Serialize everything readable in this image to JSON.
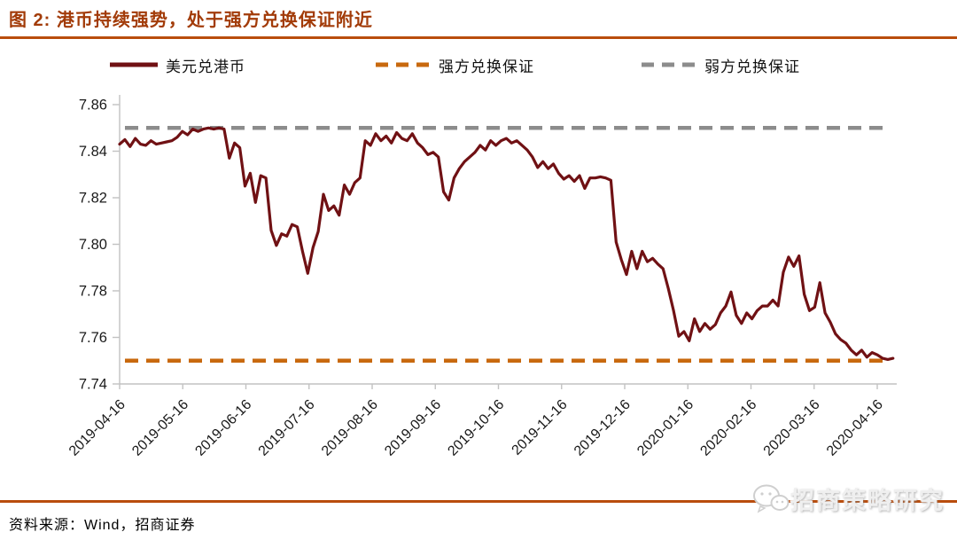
{
  "figure": {
    "title": "图 2: 港币持续强势，处于强方兑换保证附近",
    "source": "资料来源：Wind，招商证券",
    "watermark": "招商策略研究"
  },
  "colors": {
    "title": "#A23B08",
    "rule": "#B94D0D",
    "series_line": "#701114",
    "strong_side": "#C8690E",
    "weak_side": "#8C8C8C",
    "axis": "#C2C2C2",
    "tick_label": "#1A1A1A"
  },
  "chart_data": {
    "type": "line",
    "title": "港币持续强势，处于强方兑换保证附近",
    "xlabel": "",
    "ylabel": "",
    "ylim": [
      7.74,
      7.86
    ],
    "y_ticks": [
      7.86,
      7.84,
      7.82,
      7.8,
      7.78,
      7.76,
      7.74
    ],
    "x_tick_labels": [
      "2019-04-16",
      "2019-05-16",
      "2019-06-16",
      "2019-07-16",
      "2019-08-16",
      "2019-09-16",
      "2019-10-16",
      "2019-11-16",
      "2019-12-16",
      "2020-01-16",
      "2020-02-16",
      "2020-03-16",
      "2020-04-16"
    ],
    "x_span_months": 12.25,
    "grid": false,
    "legend_position": "top",
    "series": [
      {
        "name": "美元兑港币",
        "style": "solid",
        "color": "#701114",
        "values": [
          7.843,
          7.845,
          7.842,
          7.8455,
          7.843,
          7.8425,
          7.8445,
          7.843,
          7.8435,
          7.844,
          7.8445,
          7.846,
          7.8485,
          7.847,
          7.8495,
          7.8485,
          7.8495,
          7.85,
          7.8495,
          7.85,
          7.8495,
          7.837,
          7.8435,
          7.8415,
          7.825,
          7.8305,
          7.818,
          7.8295,
          7.8285,
          7.806,
          7.7995,
          7.8045,
          7.8035,
          7.8085,
          7.8075,
          7.797,
          7.7875,
          7.7985,
          7.8055,
          7.8215,
          7.8145,
          7.8165,
          7.8125,
          7.8255,
          7.8215,
          7.8265,
          7.8285,
          7.8445,
          7.8425,
          7.8475,
          7.8445,
          7.8465,
          7.8435,
          7.848,
          7.8455,
          7.8445,
          7.8475,
          7.8435,
          7.8415,
          7.8385,
          7.8395,
          7.8375,
          7.8225,
          7.819,
          7.8285,
          7.8325,
          7.8355,
          7.8375,
          7.8395,
          7.8425,
          7.8405,
          7.8445,
          7.8425,
          7.8445,
          7.8455,
          7.8435,
          7.8445,
          7.8425,
          7.8405,
          7.8375,
          7.833,
          7.8355,
          7.8325,
          7.8345,
          7.8305,
          7.828,
          7.8295,
          7.827,
          7.8295,
          7.824,
          7.8285,
          7.8285,
          7.829,
          7.8285,
          7.8275,
          7.801,
          7.7935,
          7.787,
          7.797,
          7.7895,
          7.797,
          7.7925,
          7.794,
          7.7915,
          7.7895,
          7.781,
          7.7715,
          7.7605,
          7.7625,
          7.7585,
          7.768,
          7.7625,
          7.766,
          7.7635,
          7.7655,
          7.7705,
          7.7735,
          7.7795,
          7.7695,
          7.766,
          7.7705,
          7.768,
          7.7715,
          7.7735,
          7.7735,
          7.776,
          7.7735,
          7.788,
          7.7945,
          7.7905,
          7.795,
          7.7785,
          7.7715,
          7.773,
          7.7835,
          7.7705,
          7.7665,
          7.7615,
          7.759,
          7.7575,
          7.7545,
          7.7525,
          7.7545,
          7.7515,
          7.7535,
          7.7525,
          7.751,
          7.7505,
          7.751
        ]
      },
      {
        "name": "强方兑换保证",
        "style": "dashed",
        "color": "#C8690E",
        "value": 7.75
      },
      {
        "name": "弱方兑换保证",
        "style": "dashed",
        "color": "#8C8C8C",
        "value": 7.85
      }
    ]
  }
}
